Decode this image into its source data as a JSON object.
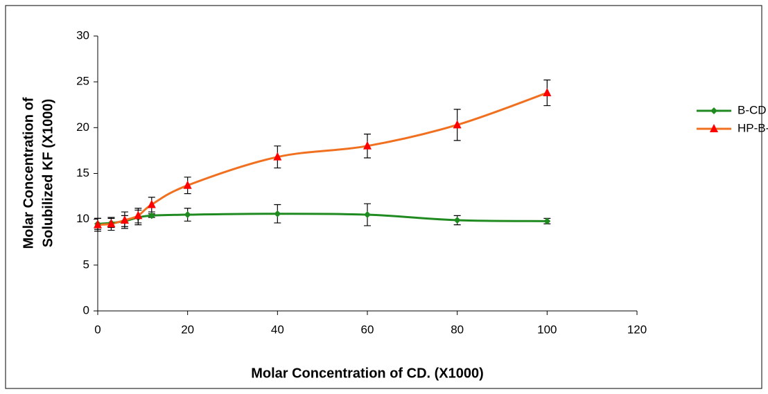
{
  "chart_data": {
    "type": "line",
    "xlabel": "Molar Concentration of CD. (X1000)",
    "ylabel": [
      "Molar Concentration of",
      "Solubilized KF (X1000)"
    ],
    "x": [
      0,
      3,
      6,
      9,
      12,
      20,
      40,
      60,
      80,
      100
    ],
    "series": [
      {
        "name": "B-CD",
        "color": "#1f8a1f",
        "marker_color": "#1f8a1f",
        "marker": "diamond",
        "values": [
          9.5,
          9.6,
          9.8,
          10.2,
          10.4,
          10.5,
          10.6,
          10.5,
          9.9,
          9.8
        ],
        "errors": [
          0.6,
          0.5,
          0.6,
          0.8,
          0.2,
          0.7,
          1.0,
          1.2,
          0.5,
          0.3
        ]
      },
      {
        "name": "HP-B-CD",
        "color": "#f07020",
        "marker_color": "#ff0000",
        "marker": "triangle",
        "values": [
          9.4,
          9.5,
          9.9,
          10.4,
          11.6,
          13.7,
          16.8,
          18.0,
          20.3,
          23.8
        ],
        "errors": [
          0.7,
          0.7,
          0.9,
          0.8,
          0.8,
          0.9,
          1.2,
          1.3,
          1.7,
          1.4
        ]
      }
    ],
    "xlim": [
      0,
      120
    ],
    "xticks": [
      0,
      20,
      40,
      60,
      80,
      100,
      120
    ],
    "ylim": [
      0,
      30
    ],
    "yticks": [
      0,
      5,
      10,
      15,
      20,
      25,
      30
    ],
    "grid": false,
    "legend": "right"
  }
}
